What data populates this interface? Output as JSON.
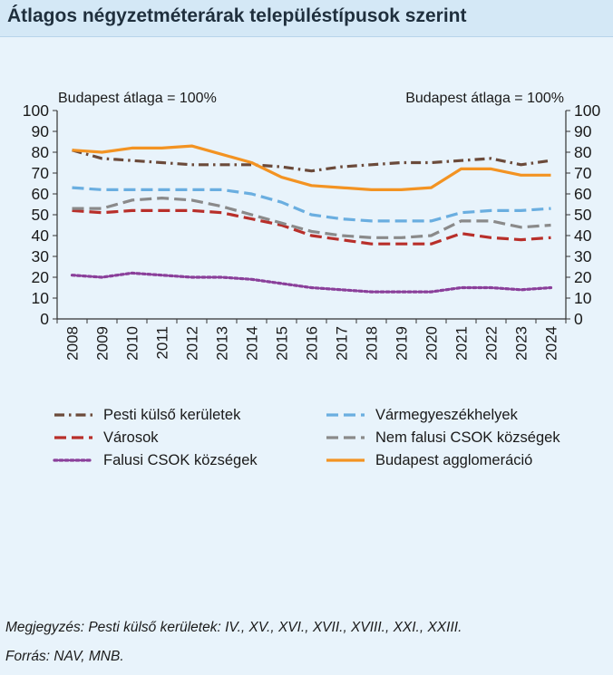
{
  "chart_data": {
    "type": "line",
    "title": "Átlagos négyzetméterárak településtípusok szerint",
    "annotation_left": "Budapest átlaga = 100%",
    "annotation_right": "Budapest átlaga = 100%",
    "x": [
      "2008",
      "2009",
      "2010",
      "2011",
      "2012",
      "2013",
      "2014",
      "2015",
      "2016",
      "2017",
      "2018",
      "2019",
      "2020",
      "2021",
      "2022",
      "2023",
      "2024"
    ],
    "ylim": [
      0,
      100
    ],
    "yticks": [
      "0",
      "10",
      "20",
      "30",
      "40",
      "50",
      "60",
      "70",
      "80",
      "90",
      "100"
    ],
    "secondary_yticks": [
      "0",
      "10",
      "20",
      "30",
      "40",
      "50",
      "60",
      "70",
      "80",
      "90",
      "100"
    ],
    "grid": false,
    "legend_position": "bottom",
    "series": [
      {
        "name": "Pesti külső kerületek",
        "color": "#6b4a3a",
        "style": "dashdot",
        "values": [
          81,
          77,
          76,
          75,
          74,
          74,
          74,
          73,
          71,
          73,
          74,
          75,
          75,
          76,
          77,
          74,
          76
        ]
      },
      {
        "name": "Vármegyeszékhelyek",
        "color": "#6aaee0",
        "style": "dash",
        "values": [
          63,
          62,
          62,
          62,
          62,
          62,
          60,
          56,
          50,
          48,
          47,
          47,
          47,
          51,
          52,
          52,
          53
        ]
      },
      {
        "name": "Városok",
        "color": "#b82f2a",
        "style": "dash",
        "values": [
          52,
          51,
          52,
          52,
          52,
          51,
          48,
          45,
          40,
          38,
          36,
          36,
          36,
          41,
          39,
          38,
          39
        ]
      },
      {
        "name": "Nem falusi CSOK községek",
        "color": "#8a8a8a",
        "style": "dash",
        "values": [
          53,
          53,
          57,
          58,
          57,
          54,
          50,
          46,
          42,
          40,
          39,
          39,
          40,
          47,
          47,
          44,
          45
        ]
      },
      {
        "name": "Falusi CSOK községek",
        "color": "#8a3f9a",
        "style": "dot",
        "values": [
          21,
          20,
          22,
          21,
          20,
          20,
          19,
          17,
          15,
          14,
          13,
          13,
          13,
          15,
          15,
          14,
          15
        ]
      },
      {
        "name": "Budapest agglomeráció",
        "color": "#f39322",
        "style": "solid",
        "values": [
          81,
          80,
          82,
          82,
          83,
          79,
          75,
          68,
          64,
          63,
          62,
          62,
          63,
          72,
          72,
          69,
          69
        ]
      }
    ]
  },
  "notes": {
    "note_line": "Megjegyzés: Pesti külső kerületek: IV., XV., XVI., XVII., XVIII., XXI., XXIII.",
    "source_line": "Forrás: NAV, MNB."
  }
}
